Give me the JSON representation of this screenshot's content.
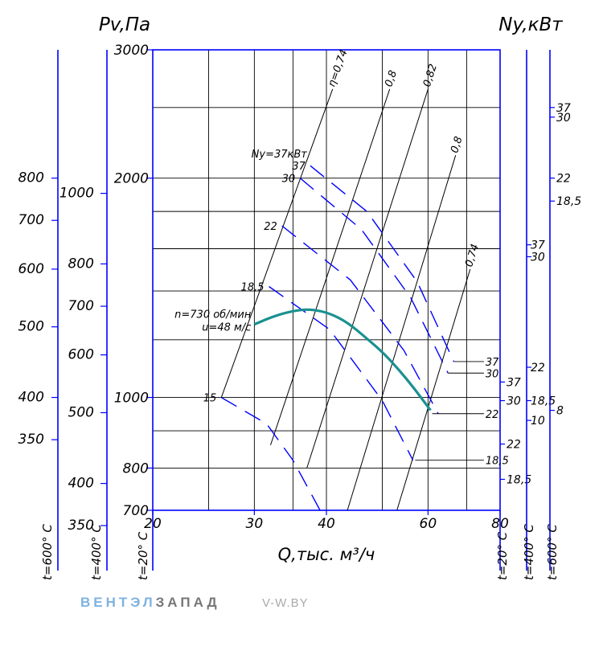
{
  "brand": {
    "part1": "ВЕНТЭЛ",
    "part2": "ЗАПАД",
    "site": "V-W.BY"
  },
  "chart_data": {
    "type": "line",
    "title_left": "Pv,Па",
    "title_right": "Ny,кВт",
    "xlabel": "Q,тыс. м³/ч",
    "x_axis": {
      "scale": "log",
      "range": [
        20,
        80
      ],
      "ticks": [
        20,
        30,
        40,
        60,
        80
      ]
    },
    "y_axis_main": {
      "label_t": "t=20° C",
      "scale": "log",
      "range": [
        700,
        3000
      ],
      "ticks": [
        {
          "value": 3000,
          "label": "3000"
        },
        {
          "value": 2000,
          "label": "2000"
        },
        {
          "value": 1000,
          "label": "1000"
        },
        {
          "value": 800,
          "label": "800"
        },
        {
          "value": 700,
          "label": "700"
        }
      ]
    },
    "y_axis_400": {
      "label_t": "t=400° C",
      "ticks": [
        {
          "value": 1000,
          "label": "1000",
          "y_main": 1906
        },
        {
          "value": 800,
          "label": "800",
          "y_main": 1525
        },
        {
          "value": 700,
          "label": "700",
          "y_main": 1334
        },
        {
          "value": 600,
          "label": "600",
          "y_main": 1144
        },
        {
          "value": 500,
          "label": "500",
          "y_main": 953
        },
        {
          "value": 400,
          "label": "400",
          "y_main": 762
        },
        {
          "value": 350,
          "label": "350",
          "y_main": 667
        }
      ]
    },
    "y_axis_600": {
      "label_t": "t=600° C",
      "ticks": [
        {
          "value": 800,
          "label": "800",
          "y_main": 2000
        },
        {
          "value": 700,
          "label": "700",
          "y_main": 1750
        },
        {
          "value": 600,
          "label": "600",
          "y_main": 1500
        },
        {
          "value": 500,
          "label": "500",
          "y_main": 1250
        },
        {
          "value": 400,
          "label": "400",
          "y_main": 1000
        },
        {
          "value": 350,
          "label": "350",
          "y_main": 875
        }
      ]
    },
    "right_axes": [
      {
        "label_t": "t=20° C",
        "ticks": [
          {
            "label": "37",
            "y_main": 1050
          },
          {
            "label": "30",
            "y_main": 990
          },
          {
            "label": "22",
            "y_main": 863
          },
          {
            "label": "18,5",
            "y_main": 772
          }
        ]
      },
      {
        "label_t": "t=400° C",
        "ticks": [
          {
            "label": "37",
            "y_main": 1620
          },
          {
            "label": "30",
            "y_main": 1560
          },
          {
            "label": "22",
            "y_main": 1100
          },
          {
            "label": "18,5",
            "y_main": 990
          },
          {
            "label": "10",
            "y_main": 930
          }
        ]
      },
      {
        "label_t": "t=600° C",
        "ticks": [
          {
            "label": "37",
            "y_main": 2500
          },
          {
            "label": "30",
            "y_main": 2425
          },
          {
            "label": "22",
            "y_main": 2000
          },
          {
            "label": "18,5",
            "y_main": 1860
          },
          {
            "label": "8",
            "y_main": 960
          }
        ]
      }
    ],
    "grid_y_values": [
      2500,
      2000,
      1800,
      1600,
      1400,
      1200,
      1000,
      900,
      800
    ],
    "grid_x_values": [
      25,
      30,
      35,
      40,
      50,
      60,
      70
    ],
    "fan_curve": {
      "label": "n=730 об/мин",
      "label2": "u=48 м/с",
      "color": "#1a9090",
      "x": [
        30.0,
        33.0,
        36.0,
        38.0,
        40.5,
        43.5,
        46.7,
        50.0,
        53.5,
        57.0,
        60.6
      ],
      "y": [
        1260,
        1300,
        1320,
        1320,
        1305,
        1268,
        1210,
        1155,
        1090,
        1025,
        960
      ]
    },
    "efficiency_lines": [
      {
        "label": "η=0,74",
        "x": [
          26.3,
          41.0
        ],
        "y": [
          1000,
          2650
        ]
      },
      {
        "label": "0,8",
        "x": [
          32.0,
          51.5
        ],
        "y": [
          860,
          2650
        ]
      },
      {
        "label": "0,82",
        "x": [
          37.0,
          60.0
        ],
        "y": [
          800,
          2650
        ]
      },
      {
        "label": "0,8",
        "x": [
          43.5,
          67.0
        ],
        "y": [
          700,
          2150
        ]
      },
      {
        "label": "0,74",
        "x": [
          53.0,
          71.0
        ],
        "y": [
          700,
          1500
        ]
      }
    ],
    "power_lines": [
      {
        "label": "15",
        "x": [
          26.3,
          31.5,
          35.0,
          39.0
        ],
        "y": [
          1000,
          920,
          820,
          700
        ]
      },
      {
        "label": "18,5",
        "x": [
          31.8,
          40.5,
          50.0,
          56.5
        ],
        "y": [
          1420,
          1240,
          990,
          820
        ]
      },
      {
        "label": "22",
        "x": [
          33.5,
          44.0,
          54.5,
          62.5
        ],
        "y": [
          1720,
          1450,
          1160,
          950
        ]
      },
      {
        "label": "30",
        "x": [
          36.0,
          46.0,
          56.0,
          65.0
        ],
        "y": [
          2000,
          1700,
          1370,
          1080
        ]
      },
      {
        "label": "37",
        "x": [
          37.5,
          47.0,
          57.5,
          66.5
        ],
        "y": [
          2080,
          1800,
          1440,
          1120
        ]
      }
    ],
    "power_line_header": "Ny=37кВт",
    "leader_labels": [
      {
        "label": "37",
        "x": 66.5,
        "y": 1120,
        "x_end": 75.0,
        "y_end": 1120
      },
      {
        "label": "30",
        "x": 65.0,
        "y": 1080,
        "x_end": 75.0,
        "y_end": 1080
      },
      {
        "label": "22",
        "x": 61.0,
        "y": 950,
        "x_end": 75.0,
        "y_end": 950
      },
      {
        "label": "18,5",
        "x": 57.0,
        "y": 820,
        "x_end": 75.0,
        "y_end": 820
      }
    ],
    "grid": true
  }
}
